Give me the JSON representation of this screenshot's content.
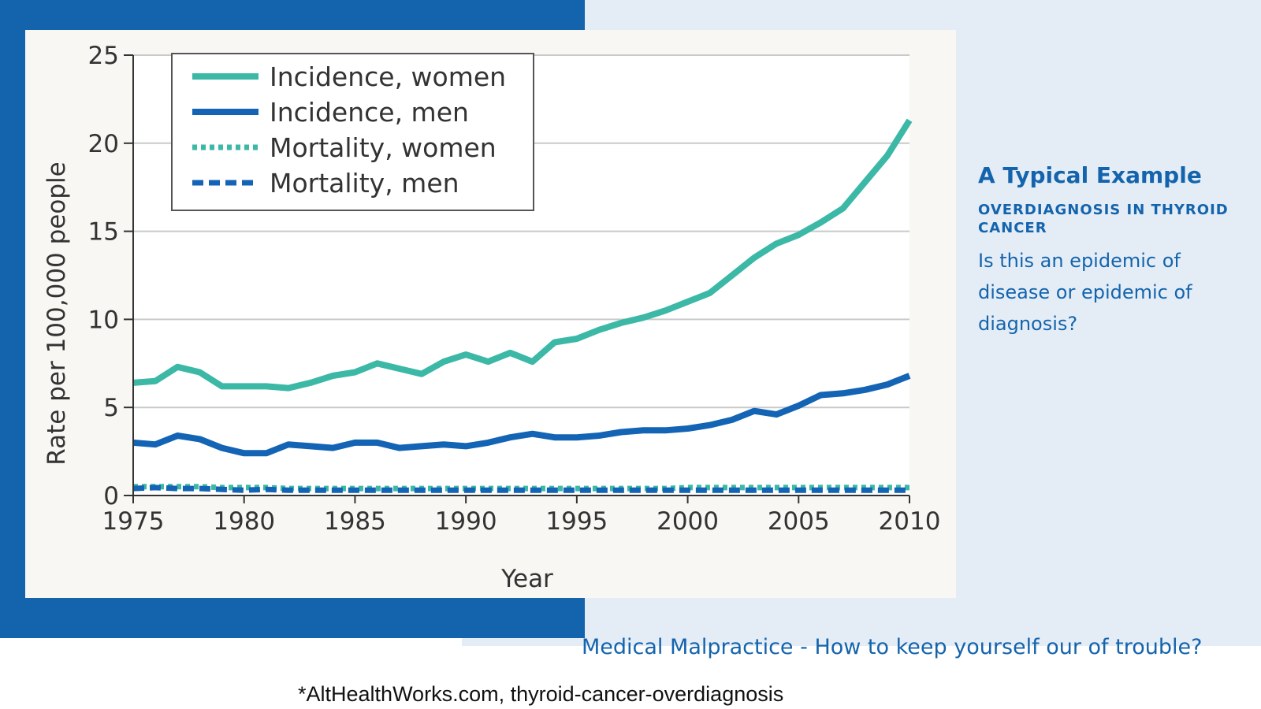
{
  "slide": {
    "title": "A Typical Example",
    "subtitle": "OVERDIAGNOSIS IN THYROID CANCER",
    "question": "Is this an epidemic of disease or epidemic of diagnosis?",
    "footer_title": "Medical Malpractice - How to keep yourself our of trouble?",
    "footnote": "*AltHealthWorks.com, thyroid-cancer-overdiagnosis"
  },
  "colors": {
    "brand_blue": "#1464ad",
    "panel_light": "#e4edf6",
    "women": "#3cb8a6",
    "men": "#1364b4"
  },
  "chart_data": {
    "type": "line",
    "title": "",
    "xlabel": "Year",
    "ylabel": "Rate per 100,000 people",
    "xlim": [
      1975,
      2010
    ],
    "ylim": [
      0,
      25
    ],
    "xticks": [
      1975,
      1980,
      1985,
      1990,
      1995,
      2000,
      2005,
      2010
    ],
    "yticks": [
      0,
      5,
      10,
      15,
      20,
      25
    ],
    "grid": true,
    "legend_position": "top-left",
    "x": [
      1975,
      1976,
      1977,
      1978,
      1979,
      1980,
      1981,
      1982,
      1983,
      1984,
      1985,
      1986,
      1987,
      1988,
      1989,
      1990,
      1991,
      1992,
      1993,
      1994,
      1995,
      1996,
      1997,
      1998,
      1999,
      2000,
      2001,
      2002,
      2003,
      2004,
      2005,
      2006,
      2007,
      2008,
      2009,
      2010
    ],
    "series": [
      {
        "name": "Incidence, women",
        "style": "solid",
        "color": "#3cb8a6",
        "values": [
          6.4,
          6.5,
          7.3,
          7.0,
          6.2,
          6.2,
          6.2,
          6.1,
          6.4,
          6.8,
          7.0,
          7.5,
          7.2,
          6.9,
          7.6,
          8.0,
          7.6,
          8.1,
          7.6,
          8.7,
          8.9,
          9.4,
          9.8,
          10.1,
          10.5,
          11.0,
          11.5,
          12.5,
          13.5,
          14.3,
          14.8,
          15.5,
          16.3,
          17.8,
          19.3,
          21.3
        ]
      },
      {
        "name": "Incidence, men",
        "style": "solid",
        "color": "#1364b4",
        "values": [
          3.0,
          2.9,
          3.4,
          3.2,
          2.7,
          2.4,
          2.4,
          2.9,
          2.8,
          2.7,
          3.0,
          3.0,
          2.7,
          2.8,
          2.9,
          2.8,
          3.0,
          3.3,
          3.5,
          3.3,
          3.3,
          3.4,
          3.6,
          3.7,
          3.7,
          3.8,
          4.0,
          4.3,
          4.8,
          4.6,
          5.1,
          5.7,
          5.8,
          6.0,
          6.3,
          6.8
        ]
      },
      {
        "name": "Mortality, women",
        "style": "dotted",
        "color": "#3cb8a6",
        "values": [
          0.5,
          0.5,
          0.5,
          0.5,
          0.45,
          0.45,
          0.45,
          0.4,
          0.4,
          0.4,
          0.4,
          0.4,
          0.4,
          0.4,
          0.4,
          0.4,
          0.4,
          0.4,
          0.4,
          0.4,
          0.4,
          0.4,
          0.4,
          0.4,
          0.4,
          0.45,
          0.45,
          0.45,
          0.45,
          0.45,
          0.45,
          0.45,
          0.45,
          0.45,
          0.45,
          0.45
        ]
      },
      {
        "name": "Mortality, men",
        "style": "dashed",
        "color": "#1364b4",
        "values": [
          0.4,
          0.45,
          0.4,
          0.4,
          0.35,
          0.3,
          0.35,
          0.3,
          0.3,
          0.3,
          0.3,
          0.3,
          0.3,
          0.3,
          0.3,
          0.3,
          0.3,
          0.3,
          0.3,
          0.3,
          0.3,
          0.3,
          0.3,
          0.3,
          0.3,
          0.3,
          0.3,
          0.3,
          0.3,
          0.3,
          0.3,
          0.3,
          0.3,
          0.3,
          0.3,
          0.3
        ]
      }
    ]
  }
}
